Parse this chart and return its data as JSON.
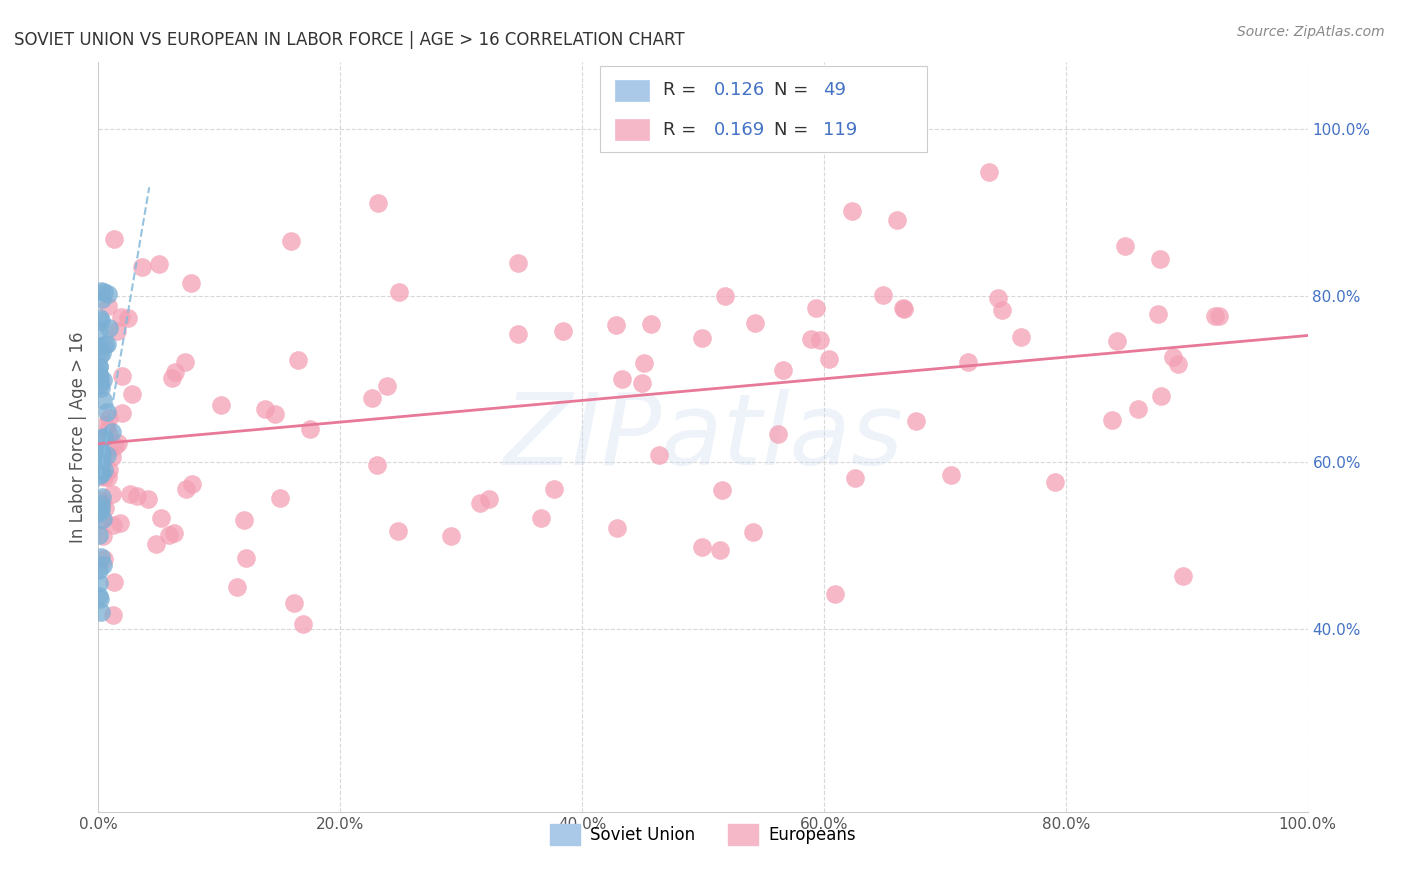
{
  "title": "SOVIET UNION VS EUROPEAN IN LABOR FORCE | AGE > 16 CORRELATION CHART",
  "source_text": "Source: ZipAtlas.com",
  "ylabel": "In Labor Force | Age > 16",
  "xlim": [
    0.0,
    1.0
  ],
  "ylim": [
    0.18,
    1.08
  ],
  "xticks": [
    0.0,
    0.2,
    0.4,
    0.6,
    0.8,
    1.0
  ],
  "xtick_labels": [
    "0.0%",
    "20.0%",
    "40.0%",
    "60.0%",
    "80.0%",
    "100.0%"
  ],
  "ytick_labels_right": [
    "40.0%",
    "60.0%",
    "80.0%",
    "100.0%"
  ],
  "yticks_right": [
    0.4,
    0.6,
    0.8,
    1.0
  ],
  "soviet_union_color": "#7bafd4",
  "soviet_union_edge": "#5a9fc8",
  "europeans_color": "#f4a0b5",
  "europeans_edge": "#e87898",
  "watermark": "ZIPatlas",
  "background_color": "#ffffff",
  "grid_color": "#d8d8d8",
  "trend_blue_color": "#85b8db",
  "trend_pink_color": "#e87898",
  "legend_su_color": "#aac8e8",
  "legend_eu_color": "#f4b8c8",
  "R_su": 0.126,
  "N_su": 49,
  "R_eu": 0.169,
  "N_eu": 119
}
